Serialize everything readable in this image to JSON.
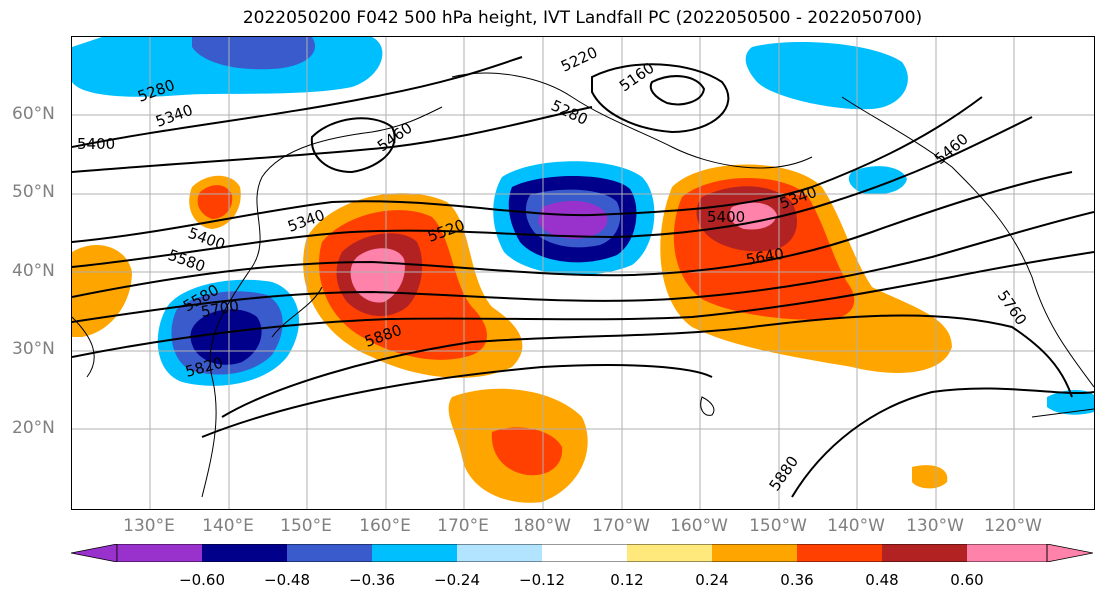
{
  "title": "2022050200 F042 500 hPa height, IVT Landfall PC (2022050500 - 2022050700)",
  "lat_labels": [
    "60°N",
    "50°N",
    "40°N",
    "30°N",
    "20°N"
  ],
  "lon_labels": [
    "130°E",
    "140°E",
    "150°E",
    "160°E",
    "170°E",
    "180°W",
    "170°W",
    "160°W",
    "150°W",
    "140°W",
    "130°W",
    "120°W"
  ],
  "contour_labels": [
    "5280",
    "5340",
    "5400",
    "5460",
    "5220",
    "5160",
    "5280",
    "5460",
    "5400",
    "5580",
    "5340",
    "5520",
    "5400",
    "5340",
    "5640",
    "5760",
    "5880",
    "5580",
    "5700",
    "5820",
    "5880"
  ],
  "colorbar": {
    "colors": [
      "#9932CC",
      "#00008B",
      "#3A5BCB",
      "#00BFFF",
      "#B2E3FF",
      "#FFFFFF",
      "#FFE87C",
      "#FFA500",
      "#FF4000",
      "#B22222",
      "#FF82AB"
    ],
    "ticks": [
      "−0.60",
      "−0.48",
      "−0.36",
      "−0.24",
      "−0.12",
      "0.12",
      "0.24",
      "0.36",
      "0.48",
      "0.60"
    ]
  }
}
